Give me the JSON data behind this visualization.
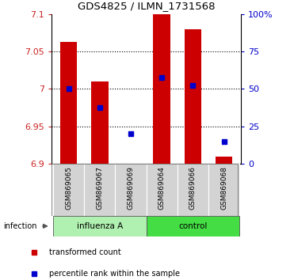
{
  "title": "GDS4825 / ILMN_1731568",
  "samples": [
    "GSM869065",
    "GSM869067",
    "GSM869069",
    "GSM869064",
    "GSM869066",
    "GSM869068"
  ],
  "groups": [
    "influenza A",
    "influenza A",
    "influenza A",
    "control",
    "control",
    "control"
  ],
  "group_labels": [
    "influenza A",
    "control"
  ],
  "group_light_color": "#b0f0b0",
  "group_dark_color": "#44dd44",
  "bar_bottom": 6.9,
  "red_bar_tops": [
    7.063,
    7.01,
    6.9,
    7.1,
    7.08,
    6.91
  ],
  "blue_marker_vals": [
    7.0,
    6.975,
    6.94,
    7.015,
    7.005,
    6.93
  ],
  "ylim": [
    6.9,
    7.1
  ],
  "yticks_left": [
    6.9,
    6.95,
    7.0,
    7.05,
    7.1
  ],
  "ytick_left_labels": [
    "6.9",
    "6.95",
    "7",
    "7.05",
    "7.1"
  ],
  "yticks_right_pct": [
    0,
    25,
    50,
    75,
    100
  ],
  "ytick_right_labels": [
    "0",
    "25",
    "50",
    "75",
    "100%"
  ],
  "bar_color": "#cc0000",
  "marker_color": "#0000cc",
  "sample_box_color": "#d3d3d3",
  "infection_label": "infection",
  "legend_red": "transformed count",
  "legend_blue": "percentile rank within the sample"
}
